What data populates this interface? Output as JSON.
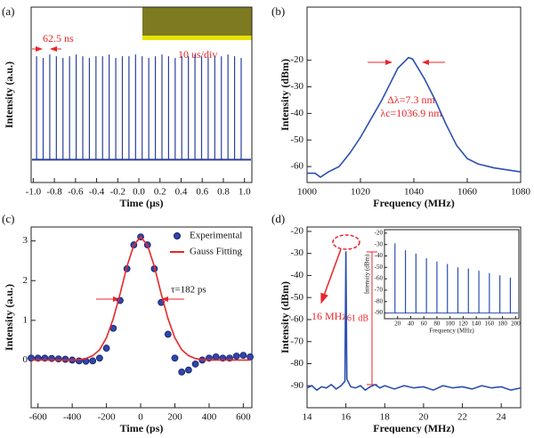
{
  "chart_data": [
    {
      "type": "stem",
      "panel": "(a)",
      "x_label": "Time (μs)",
      "y_label": "Intensity (a.u.)",
      "xlim": [
        -1.02,
        1.07
      ],
      "xticks": [
        {
          "value": -1,
          "label": "-1.0"
        },
        -0.8,
        -0.6,
        -0.4,
        -0.2,
        {
          "value": 0,
          "label": "0.0"
        },
        0.2,
        0.4,
        0.6,
        0.8,
        {
          "value": 1,
          "label": "1.0"
        }
      ],
      "ylim": [
        0,
        1
      ],
      "color": "#2b3f9e",
      "baseline": 0.13,
      "x": [
        -0.96875,
        -0.90625,
        -0.84375,
        -0.78125,
        -0.71875,
        -0.65625,
        -0.59375,
        -0.53125,
        -0.46875,
        -0.40625,
        -0.34375,
        -0.28125,
        -0.21875,
        -0.15625,
        -0.09375,
        -0.03125,
        0.03125,
        0.09375,
        0.15625,
        0.21875,
        0.28125,
        0.34375,
        0.40625,
        0.46875,
        0.53125,
        0.59375,
        0.65625,
        0.71875,
        0.78125,
        0.84375,
        0.90625,
        0.96875
      ],
      "values": [
        0.72,
        0.71,
        0.73,
        0.72,
        0.71,
        0.72,
        0.73,
        0.72,
        0.71,
        0.72,
        0.72,
        0.73,
        0.71,
        0.72,
        0.72,
        0.73,
        0.72,
        0.71,
        0.72,
        0.73,
        0.72,
        0.71,
        0.72,
        0.72,
        0.73,
        0.72,
        0.71,
        0.72,
        0.72,
        0.73,
        0.72,
        0.71
      ],
      "annotations": [
        "62.5 ns",
        "10 us/div"
      ]
    },
    {
      "type": "line",
      "panel": "(b)",
      "x_label": "Frequency (MHz)",
      "y_label": "Intensity (dBm)",
      "xlim": [
        1000,
        1080
      ],
      "xticks": [
        1000,
        1020,
        1040,
        1060,
        1080
      ],
      "ylim": [
        -66,
        0
      ],
      "yticks": [
        -60,
        -50,
        -40,
        -30,
        -20
      ],
      "x": [
        1000,
        1003,
        1005,
        1008,
        1012,
        1016,
        1020,
        1024,
        1028,
        1031,
        1034,
        1036,
        1038,
        1039.5,
        1041,
        1044,
        1048,
        1052,
        1056,
        1060,
        1064,
        1070,
        1080
      ],
      "series": [
        {
          "color": "#2b4fb0",
          "values": [
            -62.5,
            -62.5,
            -64,
            -62,
            -60,
            -55,
            -49,
            -42,
            -35,
            -29,
            -23,
            -21,
            -19,
            -19.5,
            -22,
            -27,
            -35,
            -44,
            -52,
            -57,
            -59,
            -60.5,
            -62
          ]
        }
      ],
      "annotations": [
        "Δλ=7.3 nm",
        "λc=1036.9 nm"
      ]
    },
    {
      "type": "line",
      "panel": "(c)",
      "x_label": "Time (ps)",
      "y_label": "Intensity (a.u.)",
      "xlim": [
        -640,
        650
      ],
      "xticks": [
        -600,
        -400,
        -200,
        0,
        200,
        400,
        600
      ],
      "ylim": [
        -1.2,
        3.35
      ],
      "yticks": [
        0,
        1,
        2,
        3
      ],
      "x": [
        -640,
        -600,
        -560,
        -520,
        -480,
        -440,
        -400,
        -360,
        -320,
        -280,
        -240,
        -200,
        -160,
        -120,
        -80,
        -40,
        0,
        40,
        80,
        120,
        160,
        200,
        240,
        280,
        320,
        360,
        400,
        440,
        480,
        520,
        560,
        600,
        640
      ],
      "series": [
        {
          "name": "Experimental",
          "mode": "markers",
          "color": "#2f46a8",
          "values": [
            0.05,
            0.05,
            0.05,
            0.04,
            0.03,
            0.02,
            0,
            -0.02,
            -0.03,
            -0.02,
            0.05,
            0.3,
            0.8,
            1.5,
            2.3,
            2.9,
            3.1,
            2.9,
            2.3,
            1.45,
            0.65,
            0.05,
            -0.3,
            -0.25,
            -0.1,
            0,
            0.05,
            0.08,
            0.05,
            0.05,
            0.1,
            0.12,
            0.08
          ]
        },
        {
          "name": "Gauss Fitting",
          "mode": "line",
          "color": "#e8262a",
          "values": [
            0,
            0,
            0,
            0,
            0,
            0,
            0,
            0.01,
            0.04,
            0.11,
            0.26,
            0.56,
            1.04,
            1.67,
            2.36,
            2.89,
            3.1,
            2.89,
            2.36,
            1.67,
            1.04,
            0.56,
            0.26,
            0.11,
            0.04,
            0.01,
            0,
            0,
            0,
            0,
            0,
            0,
            0
          ]
        }
      ],
      "annotations": [
        "τ=182 ps"
      ]
    },
    {
      "type": "line",
      "panel": "(d)",
      "x_label": "Frequency (MHz)",
      "y_label": "Intensity (dBm)",
      "xlim": [
        14,
        25
      ],
      "xticks": [
        14,
        16,
        18,
        20,
        22,
        24
      ],
      "ylim": [
        -100,
        -18
      ],
      "yticks": [
        -90,
        -80,
        -70,
        -60,
        -50,
        -40,
        -30,
        -20
      ],
      "x": [
        14,
        14.25,
        14.5,
        14.75,
        15,
        15.25,
        15.5,
        15.75,
        15.95,
        16,
        16.05,
        16.25,
        16.5,
        16.75,
        17,
        17.25,
        17.5,
        17.75,
        18,
        18.5,
        19,
        19.5,
        20,
        20.5,
        21,
        21.5,
        22,
        22.5,
        23,
        23.5,
        24,
        24.5,
        25
      ],
      "series": [
        {
          "color": "#2b4fb0",
          "values": [
            -91,
            -90,
            -92,
            -90.5,
            -91,
            -89.5,
            -91.5,
            -90,
            -88,
            -29,
            -87,
            -90.5,
            -91,
            -90,
            -92,
            -90.5,
            -89.5,
            -91,
            -90,
            -91.5,
            -90,
            -91,
            -90.5,
            -92,
            -90,
            -91,
            -90.5,
            -91.5,
            -90,
            -91,
            -90.5,
            -92,
            -91
          ]
        }
      ],
      "annotations": [
        "16 MHz",
        "61 dB"
      ]
    },
    {
      "type": "stem",
      "x_label": "Frequency (MHz)",
      "y_label": "Intensity (dBm)",
      "xlim": [
        0,
        205
      ],
      "xticks": [
        20,
        40,
        60,
        80,
        100,
        120,
        140,
        160,
        180,
        200
      ],
      "ylim": [
        -95,
        -17
      ],
      "yticks": [
        -90,
        -80,
        -70,
        -60,
        -50,
        -40,
        -30,
        -20
      ],
      "color": "#2b4fb0",
      "baseline": -90,
      "x": [
        16,
        32,
        48,
        64,
        80,
        96,
        112,
        128,
        144,
        160,
        176,
        192
      ],
      "values": [
        -29,
        -35,
        -38,
        -42,
        -45,
        -47,
        -50,
        -51,
        -53,
        -55,
        -57,
        -59
      ]
    }
  ]
}
